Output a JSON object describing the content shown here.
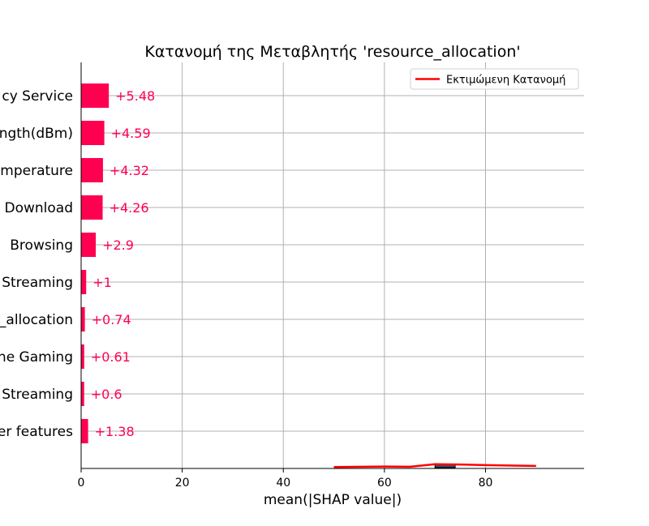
{
  "chart_data": {
    "type": "bar",
    "title": "Κατανομή της Μεταβλητής 'resource_allocation'",
    "xlabel": "mean(|SHAP value|)",
    "ylabel": "",
    "xlim": [
      0,
      99.5
    ],
    "xticks": [
      0,
      20,
      40,
      60,
      80
    ],
    "grid": true,
    "legend": {
      "placement": "top-right",
      "entries": [
        {
          "label": "Εκτιμώμενη Κατανομή",
          "color": "#ff0000"
        }
      ]
    },
    "categories": [
      "cy Service",
      "ngth(dBm)",
      "mperature",
      "Download",
      "Browsing",
      "Streaming",
      "_allocation",
      "ne Gaming",
      "Streaming",
      "er features"
    ],
    "values": [
      5.48,
      4.59,
      4.32,
      4.26,
      2.9,
      1,
      0.74,
      0.61,
      0.6,
      1.38
    ],
    "value_labels": [
      "+5.48",
      "+4.59",
      "+4.32",
      "+4.26",
      "+2.9",
      "+1",
      "+0.74",
      "+0.61",
      "+0.6",
      "+1.38"
    ],
    "bar_color": "#ff0051",
    "overlay": {
      "histogram": [
        {
          "x0": 70,
          "x1": 74,
          "height": 0.3
        }
      ],
      "estimated_curve": {
        "x": [
          50,
          60,
          65,
          70,
          75,
          80,
          90
        ],
        "y": [
          0.05,
          0.1,
          0.08,
          0.3,
          0.28,
          0.22,
          0.15
        ]
      },
      "curve_color": "#ff0000"
    }
  }
}
